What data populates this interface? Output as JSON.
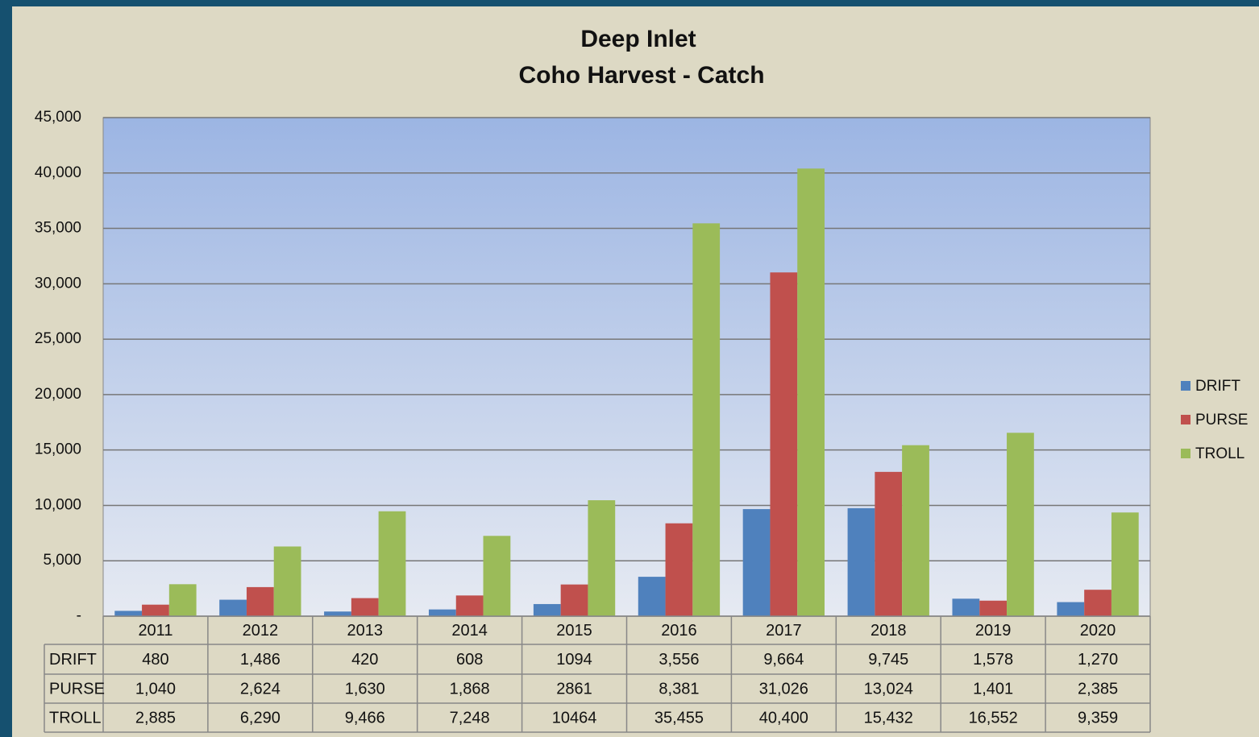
{
  "chart_data": {
    "type": "bar",
    "title": [
      "Deep Inlet",
      "Coho Harvest - Catch"
    ],
    "categories": [
      "2011",
      "2012",
      "2013",
      "2014",
      "2015",
      "2016",
      "2017",
      "2018",
      "2019",
      "2020"
    ],
    "series": [
      {
        "name": "DRIFT",
        "color": "#4f81bd",
        "values": [
          480,
          1486,
          420,
          608,
          1094,
          3556,
          9664,
          9745,
          1578,
          1270
        ],
        "value_labels": [
          "480",
          "1,486",
          "420",
          "608",
          "1094",
          "3,556",
          "9,664",
          "9,745",
          "1,578",
          "1,270"
        ]
      },
      {
        "name": "PURSE",
        "color": "#c0504d",
        "values": [
          1040,
          2624,
          1630,
          1868,
          2861,
          8381,
          31026,
          13024,
          1401,
          2385
        ],
        "value_labels": [
          "1,040",
          "2,624",
          "1,630",
          "1,868",
          "2861",
          "8,381",
          "31,026",
          "13,024",
          "1,401",
          "2,385"
        ]
      },
      {
        "name": "TROLL",
        "color": "#9bbb59",
        "values": [
          2885,
          6290,
          9466,
          7248,
          10464,
          35455,
          40400,
          15432,
          16552,
          9359
        ],
        "value_labels": [
          "2,885",
          "6,290",
          "9,466",
          "7,248",
          "10464",
          "35,455",
          "40,400",
          "15,432",
          "16,552",
          "9,359"
        ]
      }
    ],
    "ylim": [
      0,
      45000
    ],
    "yticks": [
      {
        "value": 0,
        "label": "-"
      },
      {
        "value": 5000,
        "label": "5,000"
      },
      {
        "value": 10000,
        "label": "10,000"
      },
      {
        "value": 15000,
        "label": "15,000"
      },
      {
        "value": 20000,
        "label": "20,000"
      },
      {
        "value": 25000,
        "label": "25,000"
      },
      {
        "value": 30000,
        "label": "30,000"
      },
      {
        "value": 35000,
        "label": "35,000"
      },
      {
        "value": 40000,
        "label": "40,000"
      },
      {
        "value": 45000,
        "label": "45,000"
      }
    ],
    "grid": true,
    "legend": "right"
  }
}
